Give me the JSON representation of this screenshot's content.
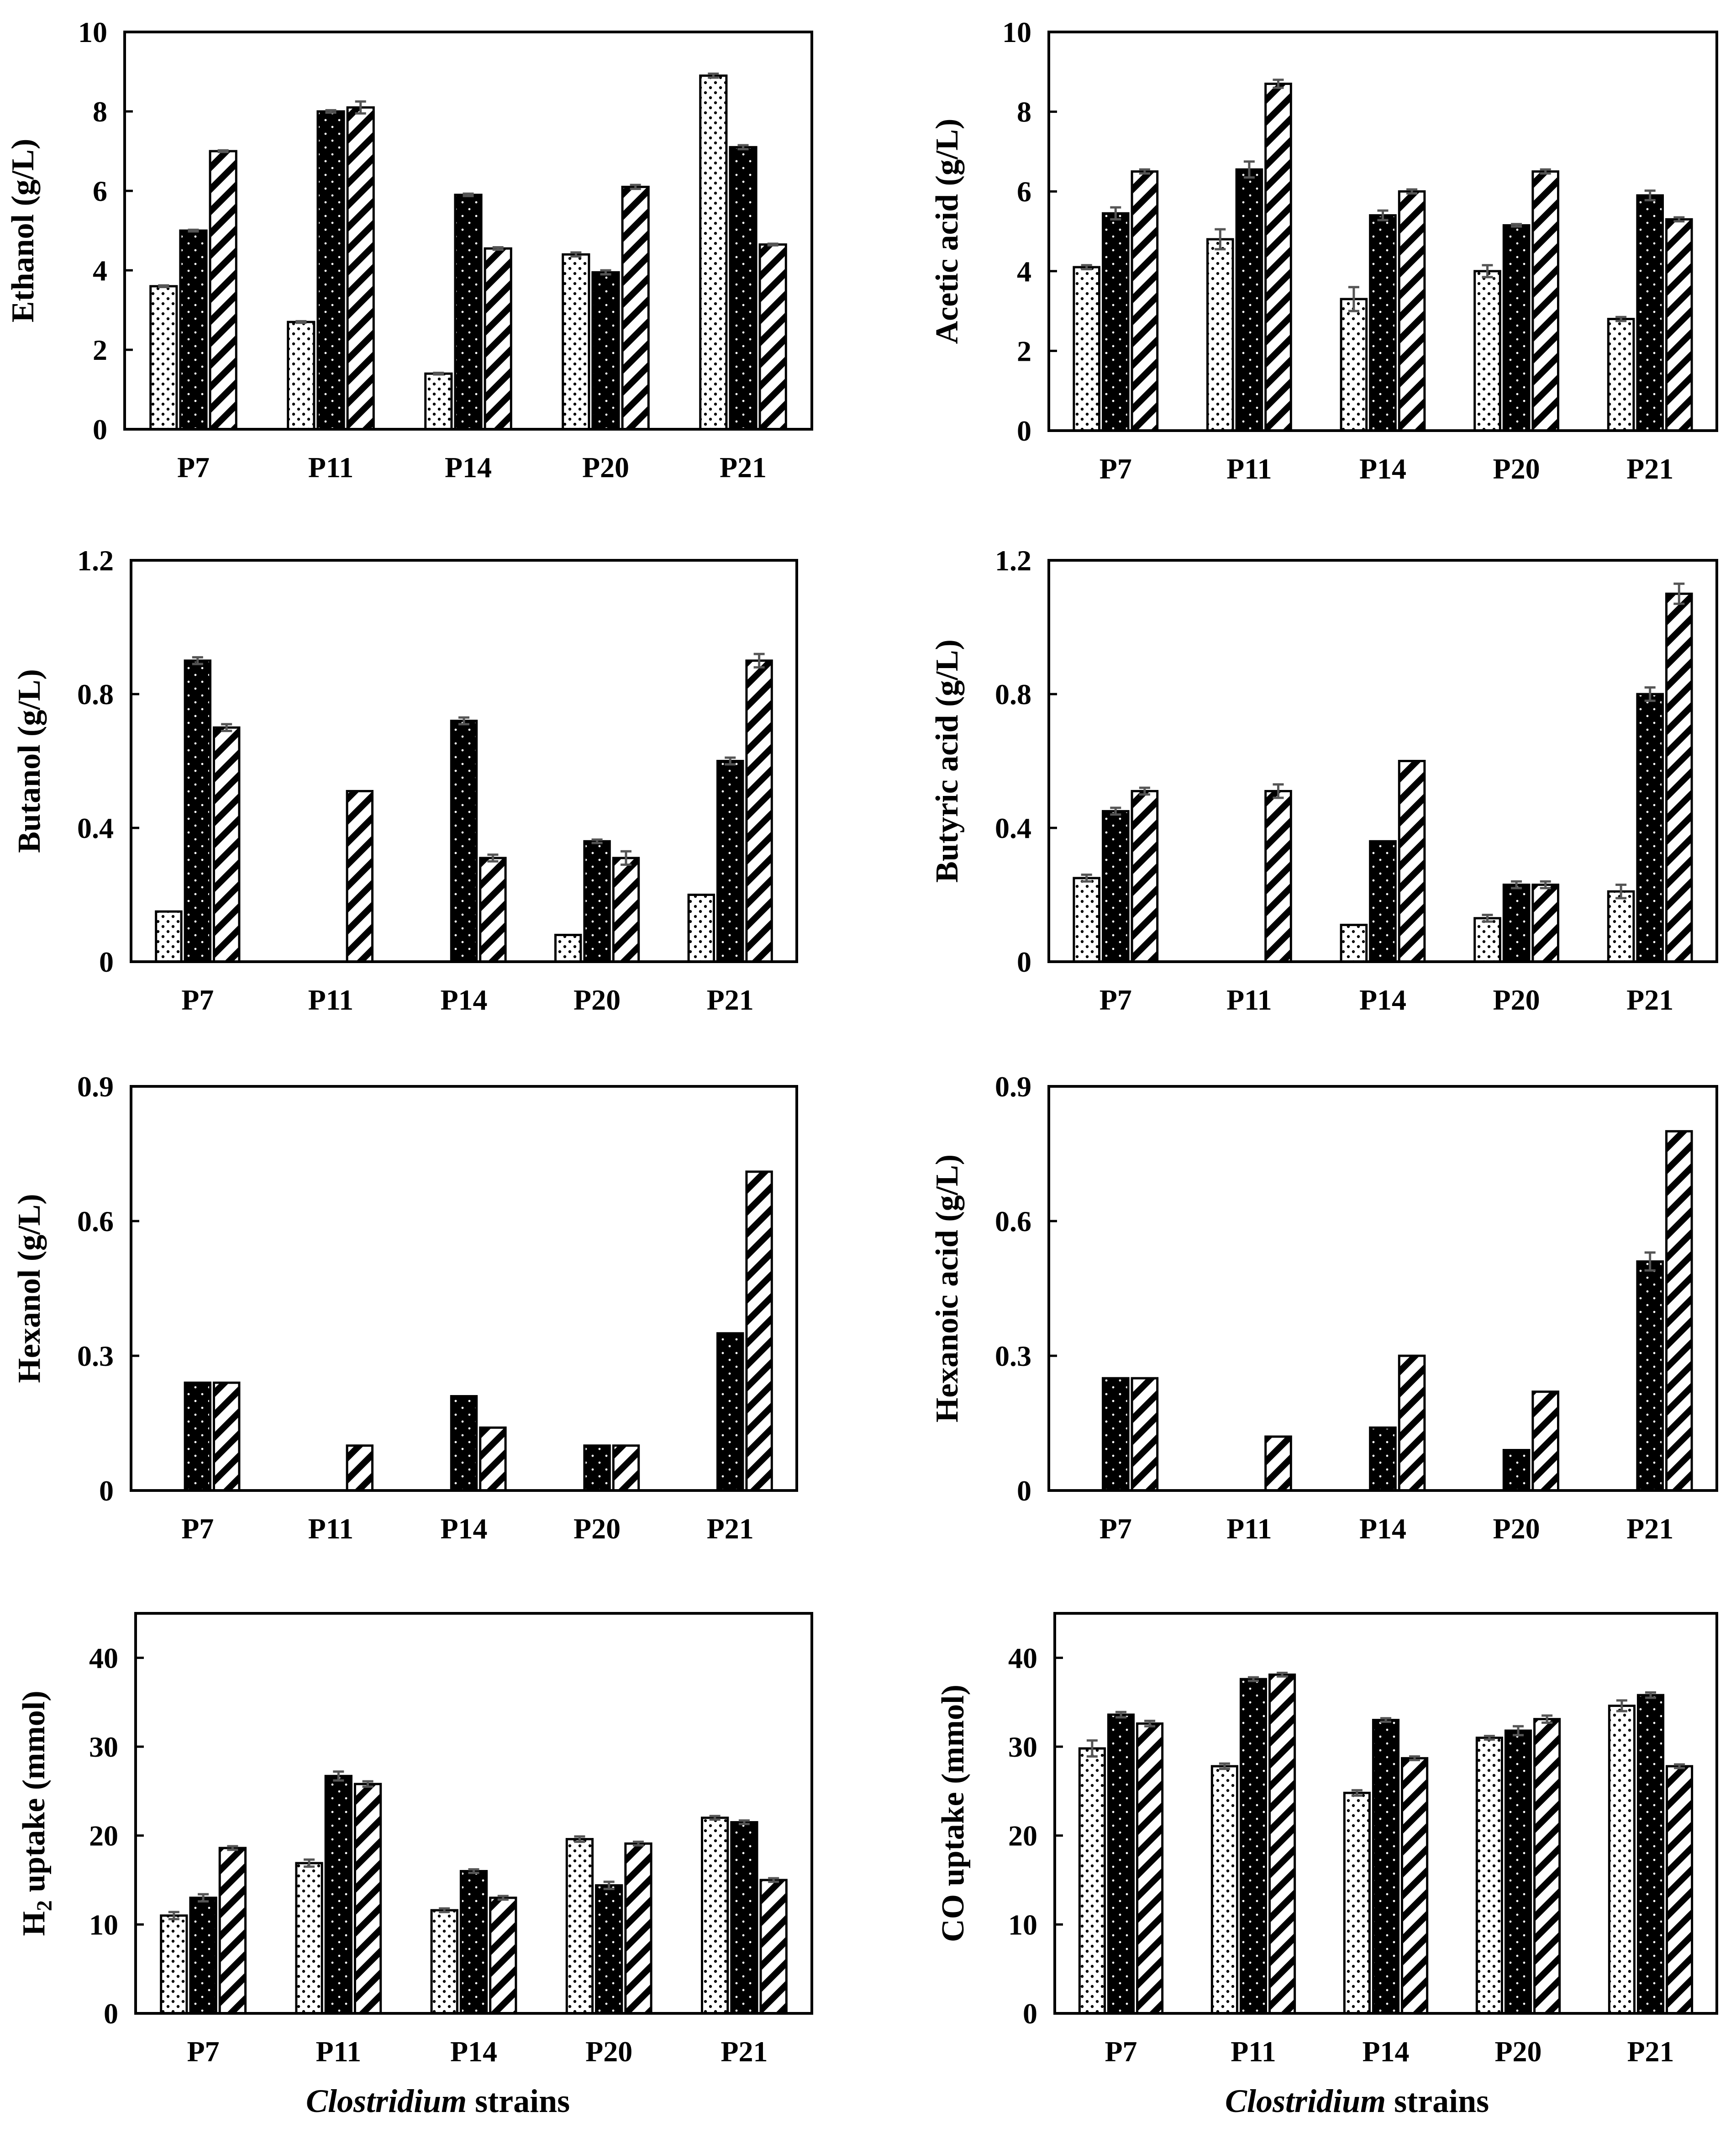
{
  "colors": {
    "series1_fill": "#ffffff",
    "series2_fill": "#000000",
    "series3_fill": "#ffffff",
    "axis": "#000000",
    "error_bar": "#555555"
  },
  "xlabel": {
    "italic": "Clostridium",
    "rest": " strains"
  },
  "chart_data": [
    {
      "type": "bar",
      "title": "",
      "ylabel": "Ethanol (g/L)",
      "ylim": [
        0,
        10
      ],
      "yticks": [
        "0",
        "2",
        "4",
        "6",
        "8",
        "10"
      ],
      "categories": [
        "P7",
        "P11",
        "P14",
        "P20",
        "P21"
      ],
      "series": [
        {
          "name": "series 1 (dotted)",
          "pattern": "dots",
          "values": [
            3.6,
            2.7,
            1.4,
            4.4,
            8.9
          ],
          "errors": [
            0.02,
            0.02,
            0.02,
            0.05,
            0.05
          ]
        },
        {
          "name": "series 2 (black)",
          "pattern": "solid",
          "values": [
            5.0,
            8.0,
            5.9,
            3.95,
            7.1
          ],
          "errors": [
            0.02,
            0.03,
            0.03,
            0.05,
            0.05
          ]
        },
        {
          "name": "series 3 (hatched)",
          "pattern": "hatch",
          "values": [
            7.0,
            8.1,
            4.55,
            6.1,
            4.65
          ],
          "errors": [
            0.02,
            0.15,
            0.03,
            0.05,
            0.02
          ]
        }
      ]
    },
    {
      "type": "bar",
      "title": "",
      "ylabel": "Acetic acid (g/L)",
      "ylim": [
        0,
        10
      ],
      "yticks": [
        "0",
        "2",
        "4",
        "6",
        "8",
        "10"
      ],
      "categories": [
        "P7",
        "P11",
        "P14",
        "P20",
        "P21"
      ],
      "series": [
        {
          "name": "series 1 (dotted)",
          "pattern": "dots",
          "values": [
            4.1,
            4.8,
            3.3,
            4.0,
            2.8
          ],
          "errors": [
            0.05,
            0.25,
            0.3,
            0.15,
            0.05
          ]
        },
        {
          "name": "series 2 (black)",
          "pattern": "solid",
          "values": [
            5.45,
            6.55,
            5.4,
            5.15,
            5.9
          ],
          "errors": [
            0.15,
            0.2,
            0.12,
            0.03,
            0.12
          ]
        },
        {
          "name": "series 3 (hatched)",
          "pattern": "hatch",
          "values": [
            6.5,
            8.7,
            6.0,
            6.5,
            5.3
          ],
          "errors": [
            0.05,
            0.1,
            0.05,
            0.05,
            0.05
          ]
        }
      ]
    },
    {
      "type": "bar",
      "title": "",
      "ylabel": "Butanol (g/L)",
      "ylim": [
        0,
        1.2
      ],
      "yticks": [
        "0",
        "0.4",
        "0.8",
        "1.2"
      ],
      "categories": [
        "P7",
        "P11",
        "P14",
        "P20",
        "P21"
      ],
      "series": [
        {
          "name": "series 1 (dotted)",
          "pattern": "dots",
          "values": [
            0.15,
            0,
            0,
            0.08,
            0.2
          ],
          "errors": [
            0,
            0,
            0,
            0,
            0
          ]
        },
        {
          "name": "series 2 (black)",
          "pattern": "solid",
          "values": [
            0.9,
            0,
            0.72,
            0.36,
            0.6
          ],
          "errors": [
            0.01,
            0,
            0.01,
            0.005,
            0.01
          ]
        },
        {
          "name": "series 3 (hatched)",
          "pattern": "hatch",
          "values": [
            0.7,
            0.51,
            0.31,
            0.31,
            0.9
          ],
          "errors": [
            0.01,
            0,
            0.01,
            0.02,
            0.02
          ]
        }
      ]
    },
    {
      "type": "bar",
      "title": "",
      "ylabel": "Butyric acid (g/L)",
      "ylim": [
        0,
        1.2
      ],
      "yticks": [
        "0",
        "0.4",
        "0.8",
        "1.2"
      ],
      "categories": [
        "P7",
        "P11",
        "P14",
        "P20",
        "P21"
      ],
      "series": [
        {
          "name": "series 1 (dotted)",
          "pattern": "dots",
          "values": [
            0.25,
            0,
            0.11,
            0.13,
            0.21
          ],
          "errors": [
            0.01,
            0,
            0,
            0.01,
            0.02
          ]
        },
        {
          "name": "series 2 (black)",
          "pattern": "solid",
          "values": [
            0.45,
            0,
            0.36,
            0.23,
            0.8
          ],
          "errors": [
            0.01,
            0,
            0,
            0.01,
            0.02
          ]
        },
        {
          "name": "series 3 (hatched)",
          "pattern": "hatch",
          "values": [
            0.51,
            0.51,
            0.6,
            0.23,
            1.1
          ],
          "errors": [
            0.01,
            0.02,
            0,
            0.01,
            0.03
          ]
        }
      ]
    },
    {
      "type": "bar",
      "title": "",
      "ylabel": "Hexanol (g/L)",
      "ylim": [
        0,
        0.9
      ],
      "yticks": [
        "0",
        "0.3",
        "0.6",
        "0.9"
      ],
      "categories": [
        "P7",
        "P11",
        "P14",
        "P20",
        "P21"
      ],
      "series": [
        {
          "name": "series 1 (dotted)",
          "pattern": "dots",
          "values": [
            0,
            0,
            0,
            0,
            0
          ],
          "errors": [
            0,
            0,
            0,
            0,
            0
          ]
        },
        {
          "name": "series 2 (black)",
          "pattern": "solid",
          "values": [
            0.24,
            0,
            0.21,
            0.1,
            0.35
          ],
          "errors": [
            0,
            0,
            0,
            0,
            0
          ]
        },
        {
          "name": "series 3 (hatched)",
          "pattern": "hatch",
          "values": [
            0.24,
            0.1,
            0.14,
            0.1,
            0.71
          ],
          "errors": [
            0,
            0,
            0,
            0,
            0
          ]
        }
      ]
    },
    {
      "type": "bar",
      "title": "",
      "ylabel": "Hexanoic acid (g/L)",
      "ylim": [
        0,
        0.9
      ],
      "yticks": [
        "0",
        "0.3",
        "0.6",
        "0.9"
      ],
      "categories": [
        "P7",
        "P11",
        "P14",
        "P20",
        "P21"
      ],
      "series": [
        {
          "name": "series 1 (dotted)",
          "pattern": "dots",
          "values": [
            0,
            0,
            0,
            0,
            0
          ],
          "errors": [
            0,
            0,
            0,
            0,
            0
          ]
        },
        {
          "name": "series 2 (black)",
          "pattern": "solid",
          "values": [
            0.25,
            0,
            0.14,
            0.09,
            0.51
          ],
          "errors": [
            0,
            0,
            0,
            0,
            0.02
          ]
        },
        {
          "name": "series 3 (hatched)",
          "pattern": "hatch",
          "values": [
            0.25,
            0.12,
            0.3,
            0.22,
            0.8
          ],
          "errors": [
            0,
            0,
            0,
            0,
            0
          ]
        }
      ]
    },
    {
      "type": "bar",
      "title": "",
      "ylabel_main": "H",
      "ylabel_sub": "2",
      "ylabel_rest": " uptake (mmol)",
      "ylim": [
        0,
        45
      ],
      "yticks": [
        "0",
        "10",
        "20",
        "30",
        "40"
      ],
      "categories": [
        "P7",
        "P11",
        "P14",
        "P20",
        "P21"
      ],
      "series": [
        {
          "name": "series 1 (dotted)",
          "pattern": "dots",
          "values": [
            11.0,
            16.9,
            11.6,
            19.6,
            22.0
          ],
          "errors": [
            0.4,
            0.4,
            0.2,
            0.3,
            0.2
          ]
        },
        {
          "name": "series 2 (black)",
          "pattern": "solid",
          "values": [
            13.0,
            26.7,
            16.0,
            14.4,
            21.5
          ],
          "errors": [
            0.4,
            0.5,
            0.2,
            0.4,
            0.2
          ]
        },
        {
          "name": "series 3 (hatched)",
          "pattern": "hatch",
          "values": [
            18.6,
            25.8,
            13.0,
            19.1,
            15.0
          ],
          "errors": [
            0.2,
            0.3,
            0.2,
            0.2,
            0.2
          ]
        }
      ]
    },
    {
      "type": "bar",
      "title": "",
      "ylabel": "CO uptake (mmol)",
      "ylim": [
        0,
        45
      ],
      "yticks": [
        "0",
        "10",
        "20",
        "30",
        "40"
      ],
      "categories": [
        "P7",
        "P11",
        "P14",
        "P20",
        "P21"
      ],
      "series": [
        {
          "name": "series 1 (dotted)",
          "pattern": "dots",
          "values": [
            29.8,
            27.8,
            24.8,
            31.0,
            34.6
          ],
          "errors": [
            0.9,
            0.3,
            0.3,
            0.2,
            0.6
          ]
        },
        {
          "name": "series 2 (black)",
          "pattern": "solid",
          "values": [
            33.6,
            37.6,
            33.0,
            31.8,
            35.8
          ],
          "errors": [
            0.3,
            0.2,
            0.2,
            0.5,
            0.3
          ]
        },
        {
          "name": "series 3 (hatched)",
          "pattern": "hatch",
          "values": [
            32.6,
            38.1,
            28.7,
            33.1,
            27.8
          ],
          "errors": [
            0.3,
            0.2,
            0.2,
            0.4,
            0.2
          ]
        }
      ]
    }
  ]
}
